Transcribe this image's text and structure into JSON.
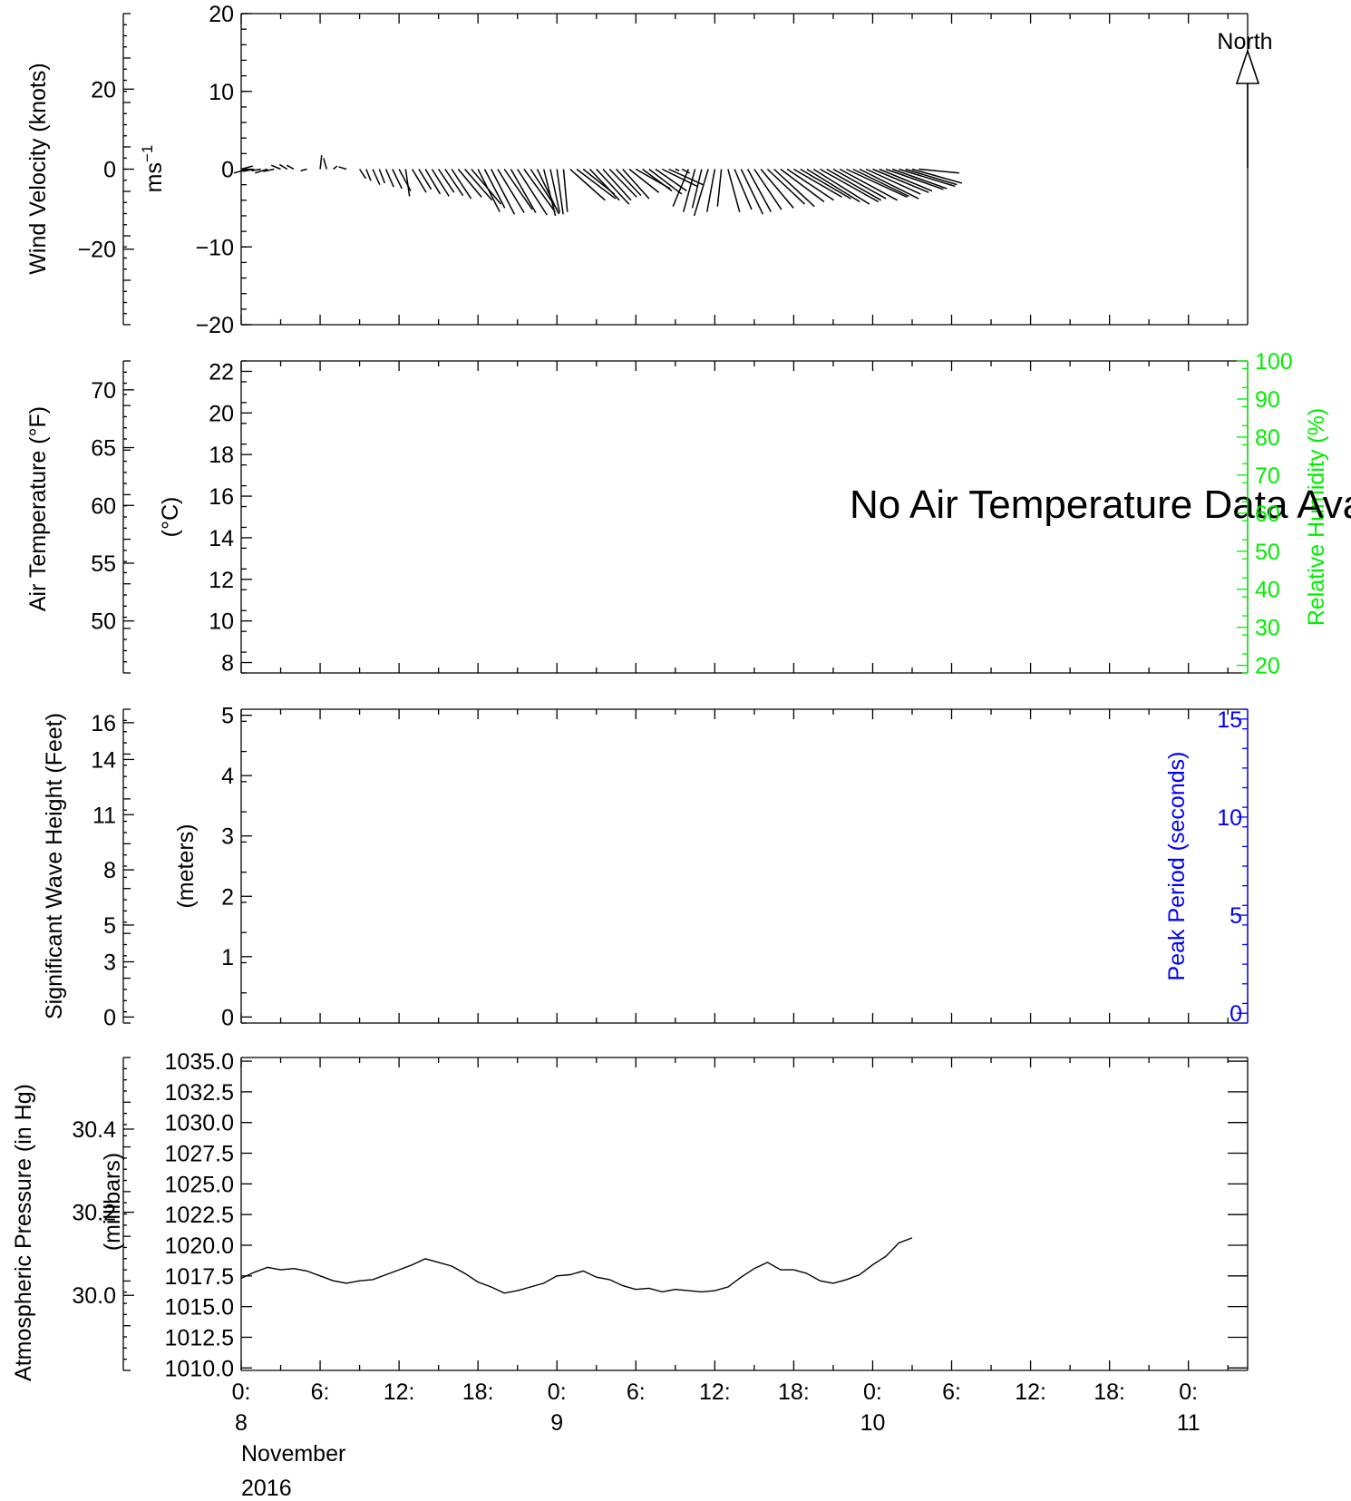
{
  "chart_data": [
    {
      "type": "line",
      "title": "",
      "description_panel": "wind-velocity",
      "ylabel_left": "Wind Velocity (knots)",
      "ylabel_inner": "ms",
      "ylabel_inner_sup": "−1",
      "yticks_knots": [
        "20",
        "0",
        "−20"
      ],
      "yticks_knots_values": [
        20,
        0,
        -20
      ],
      "yticks_ms": [
        "20",
        "10",
        "0",
        "−10",
        "−20"
      ],
      "yticks_ms_values": [
        20,
        10,
        0,
        -10,
        -20
      ],
      "ylim_ms": [
        -20,
        20
      ],
      "north_label": "North",
      "wind_vectors": [
        {
          "t": 0.0,
          "u": 1.5,
          "v": 0.4
        },
        {
          "t": 0.5,
          "u": -1.8,
          "v": -0.5
        },
        {
          "t": 1.0,
          "u": -1.5,
          "v": -0.3
        },
        {
          "t": 1.5,
          "u": -1.2,
          "v": -0.2
        },
        {
          "t": 2.0,
          "u": -1.6,
          "v": -0.5
        },
        {
          "t": 2.5,
          "u": -1.4,
          "v": -0.3
        },
        {
          "t": 3.0,
          "u": -1.2,
          "v": 0.5
        },
        {
          "t": 3.5,
          "u": -1.0,
          "v": 0.6
        },
        {
          "t": 4.0,
          "u": -0.9,
          "v": 0.5
        },
        {
          "t": 5.0,
          "u": -0.8,
          "v": -0.2
        },
        {
          "t": 6.0,
          "u": 0.2,
          "v": 1.8
        },
        {
          "t": 6.5,
          "u": -0.4,
          "v": 1.4
        },
        {
          "t": 7.0,
          "u": 0.5,
          "v": 0.4
        },
        {
          "t": 8.0,
          "u": -1.0,
          "v": 0.3
        },
        {
          "t": 9.0,
          "u": 0.8,
          "v": -1.2
        },
        {
          "t": 9.5,
          "u": 0.6,
          "v": -1.5
        },
        {
          "t": 10.0,
          "u": 0.9,
          "v": -2.0
        },
        {
          "t": 10.5,
          "u": 0.7,
          "v": -1.8
        },
        {
          "t": 11.0,
          "u": 1.0,
          "v": -2.3
        },
        {
          "t": 11.5,
          "u": 1.2,
          "v": -2.5
        },
        {
          "t": 12.0,
          "u": 1.5,
          "v": -2.8
        },
        {
          "t": 12.5,
          "u": 0.5,
          "v": -3.5
        },
        {
          "t": 13.0,
          "u": 1.8,
          "v": -3.0
        },
        {
          "t": 13.5,
          "u": 1.6,
          "v": -2.6
        },
        {
          "t": 14.0,
          "u": 1.9,
          "v": -3.2
        },
        {
          "t": 14.5,
          "u": 2.2,
          "v": -3.5
        },
        {
          "t": 15.0,
          "u": 2.0,
          "v": -3.0
        },
        {
          "t": 15.5,
          "u": 2.3,
          "v": -3.4
        },
        {
          "t": 16.0,
          "u": 2.5,
          "v": -3.8
        },
        {
          "t": 16.5,
          "u": 3.0,
          "v": -3.6
        },
        {
          "t": 17.0,
          "u": 3.5,
          "v": -4.0
        },
        {
          "t": 17.5,
          "u": 3.8,
          "v": -4.5
        },
        {
          "t": 18.0,
          "u": 2.8,
          "v": -5.5
        },
        {
          "t": 18.5,
          "u": 2.6,
          "v": -5.0
        },
        {
          "t": 19.0,
          "u": 3.0,
          "v": -5.8
        },
        {
          "t": 19.5,
          "u": 3.4,
          "v": -5.6
        },
        {
          "t": 20.0,
          "u": 3.6,
          "v": -5.2
        },
        {
          "t": 20.5,
          "u": 3.2,
          "v": -5.6
        },
        {
          "t": 21.0,
          "u": 3.8,
          "v": -5.9
        },
        {
          "t": 21.5,
          "u": 4.0,
          "v": -5.5
        },
        {
          "t": 22.0,
          "u": 3.4,
          "v": -5.2
        },
        {
          "t": 22.5,
          "u": 2.8,
          "v": -5.8
        },
        {
          "t": 23.0,
          "u": 1.5,
          "v": -6.0
        },
        {
          "t": 23.5,
          "u": 1.2,
          "v": -5.6
        },
        {
          "t": 24.0,
          "u": 0.8,
          "v": -5.8
        },
        {
          "t": 24.5,
          "u": 0.5,
          "v": -5.5
        },
        {
          "t": 25.0,
          "u": 4.5,
          "v": -4.0
        },
        {
          "t": 25.5,
          "u": 5.0,
          "v": -3.8
        },
        {
          "t": 26.0,
          "u": 4.0,
          "v": -3.2
        },
        {
          "t": 26.5,
          "u": 3.8,
          "v": -4.0
        },
        {
          "t": 27.0,
          "u": 4.2,
          "v": -4.5
        },
        {
          "t": 27.5,
          "u": 3.6,
          "v": -4.0
        },
        {
          "t": 28.0,
          "u": 3.5,
          "v": -3.6
        },
        {
          "t": 28.5,
          "u": 3.2,
          "v": -3.4
        },
        {
          "t": 29.0,
          "u": 3.4,
          "v": -3.8
        },
        {
          "t": 29.5,
          "u": 3.8,
          "v": -3.0
        },
        {
          "t": 30.0,
          "u": 4.4,
          "v": -2.5
        },
        {
          "t": 30.5,
          "u": 3.8,
          "v": -2.8
        },
        {
          "t": 31.0,
          "u": 4.2,
          "v": -3.2
        },
        {
          "t": 31.5,
          "u": 4.0,
          "v": -2.8
        },
        {
          "t": 32.0,
          "u": 4.5,
          "v": -2.2
        },
        {
          "t": 32.5,
          "u": 4.4,
          "v": -2.0
        },
        {
          "t": 33.0,
          "u": 0.5,
          "v": -0.2
        },
        {
          "t": 33.5,
          "u": 1.0,
          "v": -0.5
        },
        {
          "t": 34.0,
          "u": -2.0,
          "v": -4.8
        },
        {
          "t": 34.5,
          "u": -1.5,
          "v": -5.5
        },
        {
          "t": 35.0,
          "u": -1.2,
          "v": -5.0
        },
        {
          "t": 35.5,
          "u": -1.8,
          "v": -6.0
        },
        {
          "t": 36.0,
          "u": -1.0,
          "v": -5.5
        },
        {
          "t": 36.5,
          "u": -0.5,
          "v": -4.8
        },
        {
          "t": 37.0,
          "u": 1.5,
          "v": -5.5
        },
        {
          "t": 37.5,
          "u": 2.2,
          "v": -5.2
        },
        {
          "t": 38.0,
          "u": 2.8,
          "v": -5.8
        },
        {
          "t": 38.5,
          "u": 3.0,
          "v": -5.5
        },
        {
          "t": 39.0,
          "u": 3.5,
          "v": -5.2
        },
        {
          "t": 39.5,
          "u": 4.2,
          "v": -5.0
        },
        {
          "t": 40.0,
          "u": 4.8,
          "v": -4.5
        },
        {
          "t": 40.5,
          "u": 5.2,
          "v": -4.8
        },
        {
          "t": 41.0,
          "u": 5.6,
          "v": -4.2
        },
        {
          "t": 41.5,
          "u": 6.0,
          "v": -4.0
        },
        {
          "t": 42.0,
          "u": 6.2,
          "v": -3.6
        },
        {
          "t": 42.5,
          "u": 6.5,
          "v": -3.8
        },
        {
          "t": 43.0,
          "u": 6.8,
          "v": -4.2
        },
        {
          "t": 43.5,
          "u": 7.2,
          "v": -4.5
        },
        {
          "t": 44.0,
          "u": 7.5,
          "v": -4.2
        },
        {
          "t": 44.5,
          "u": 7.0,
          "v": -4.0
        },
        {
          "t": 45.0,
          "u": 6.8,
          "v": -3.8
        },
        {
          "t": 45.5,
          "u": 7.4,
          "v": -4.0
        },
        {
          "t": 46.0,
          "u": 7.8,
          "v": -3.6
        },
        {
          "t": 46.5,
          "u": 7.2,
          "v": -3.5
        },
        {
          "t": 47.0,
          "u": 7.6,
          "v": -3.8
        },
        {
          "t": 47.5,
          "u": 7.0,
          "v": -3.2
        },
        {
          "t": 48.0,
          "u": 7.2,
          "v": -3.0
        },
        {
          "t": 48.5,
          "u": 6.8,
          "v": -2.8
        },
        {
          "t": 49.0,
          "u": 7.4,
          "v": -2.6
        },
        {
          "t": 49.5,
          "u": 7.0,
          "v": -2.5
        },
        {
          "t": 50.0,
          "u": 7.2,
          "v": -2.2
        },
        {
          "t": 50.5,
          "u": 6.6,
          "v": -2.0
        },
        {
          "t": 51.0,
          "u": 6.4,
          "v": -1.8
        },
        {
          "t": 51.5,
          "u": 5.2,
          "v": -0.5
        }
      ]
    },
    {
      "type": "line",
      "title": "",
      "description_panel": "air-temperature",
      "ylabel_left": "Air Temperature (°F)",
      "ylabel_inner": "(°C)",
      "ylabel_right": "Relative Humidity (%)",
      "yticks_f": [
        "70",
        "65",
        "60",
        "55",
        "50"
      ],
      "yticks_f_values": [
        70,
        65,
        60,
        55,
        50
      ],
      "yticks_c": [
        "22",
        "20",
        "18",
        "16",
        "14",
        "12",
        "10",
        "8"
      ],
      "yticks_c_values": [
        22,
        20,
        18,
        16,
        14,
        12,
        10,
        8
      ],
      "ylim_c": [
        7.5,
        22.5
      ],
      "yticks_rh": [
        "100",
        "90",
        "80",
        "70",
        "60",
        "50",
        "40",
        "30",
        "20"
      ],
      "yticks_rh_values": [
        100,
        90,
        80,
        70,
        60,
        50,
        40,
        30,
        20
      ],
      "ylim_rh": [
        18,
        100
      ],
      "no_data_message": "No Air Temperature Data Available"
    },
    {
      "type": "line",
      "title": "",
      "description_panel": "wave-height",
      "ylabel_left": "Significant Wave Height (Feet)",
      "ylabel_inner": "(meters)",
      "ylabel_right": "Peak Period (seconds)",
      "yticks_ft": [
        "16",
        "14",
        "11",
        "8",
        "5",
        "3",
        "0"
      ],
      "yticks_ft_values": [
        16,
        14,
        11,
        8,
        5,
        3,
        0
      ],
      "yticks_m": [
        "5",
        "4",
        "3",
        "2",
        "1",
        "0"
      ],
      "yticks_m_values": [
        5,
        4,
        3,
        2,
        1,
        0
      ],
      "ylim_m": [
        -0.1,
        5.1
      ],
      "yticks_s": [
        "15",
        "10",
        "5",
        "0"
      ],
      "yticks_s_values": [
        15,
        10,
        5,
        0
      ],
      "ylim_s": [
        -0.5,
        15.5
      ]
    },
    {
      "type": "line",
      "title": "",
      "description_panel": "atmospheric-pressure",
      "ylabel_left": "Atmospheric Pressure (in Hg)",
      "ylabel_inner": "(millibars)",
      "yticks_inhg": [
        "30.4",
        "30.2",
        "30.0"
      ],
      "yticks_inhg_values": [
        30.4,
        30.2,
        30.0
      ],
      "yticks_mb": [
        "1035.0",
        "1032.5",
        "1030.0",
        "1027.5",
        "1025.0",
        "1022.5",
        "1020.0",
        "1017.5",
        "1015.0",
        "1012.5",
        "1010.0"
      ],
      "yticks_mb_values": [
        1035.0,
        1032.5,
        1030.0,
        1027.5,
        1025.0,
        1022.5,
        1020.0,
        1017.5,
        1015.0,
        1012.5,
        1010.0
      ],
      "ylim_mb": [
        1009.8,
        1035.3
      ],
      "x_hours": [
        0,
        1,
        2,
        3,
        4,
        5,
        6,
        7,
        8,
        9,
        10,
        11,
        12,
        13,
        14,
        15,
        16,
        17,
        18,
        19,
        20,
        21,
        22,
        23,
        24,
        25,
        26,
        27,
        28,
        29,
        30,
        31,
        32,
        33,
        34,
        35,
        36,
        37,
        38,
        39,
        40,
        41,
        42,
        43,
        44,
        45,
        46,
        47,
        48,
        49,
        50,
        51
      ],
      "pressure_mb": [
        1017.3,
        1017.8,
        1018.2,
        1018.0,
        1018.1,
        1017.9,
        1017.5,
        1017.1,
        1016.9,
        1017.1,
        1017.2,
        1017.6,
        1018.0,
        1018.4,
        1018.9,
        1018.6,
        1018.3,
        1017.7,
        1017.0,
        1016.6,
        1016.1,
        1016.3,
        1016.6,
        1016.9,
        1017.5,
        1017.6,
        1017.9,
        1017.4,
        1017.2,
        1016.7,
        1016.4,
        1016.5,
        1016.2,
        1016.4,
        1016.3,
        1016.2,
        1016.3,
        1016.6,
        1017.4,
        1018.1,
        1018.6,
        1018.0,
        1018.0,
        1017.7,
        1017.1,
        1016.9,
        1017.2,
        1017.6,
        1018.4,
        1019.1,
        1020.2,
        1020.6
      ]
    }
  ],
  "x_axis": {
    "tick_hours": [
      0,
      6,
      12,
      18,
      24,
      30,
      36,
      42,
      48,
      54,
      60,
      66,
      72
    ],
    "tick_labels": [
      "0:",
      "6:",
      "12:",
      "18:",
      "0:",
      "6:",
      "12:",
      "18:",
      "0:",
      "6:",
      "12:",
      "18:",
      "0:"
    ],
    "day_labels": [
      "8",
      "9",
      "10",
      "11"
    ],
    "month": "November",
    "year": "2016",
    "xlim_hours": [
      0,
      76.5
    ]
  },
  "colors": {
    "axis": "#000000",
    "humidity": "#00ee00",
    "period": "#0000ff",
    "line": "#000000"
  }
}
